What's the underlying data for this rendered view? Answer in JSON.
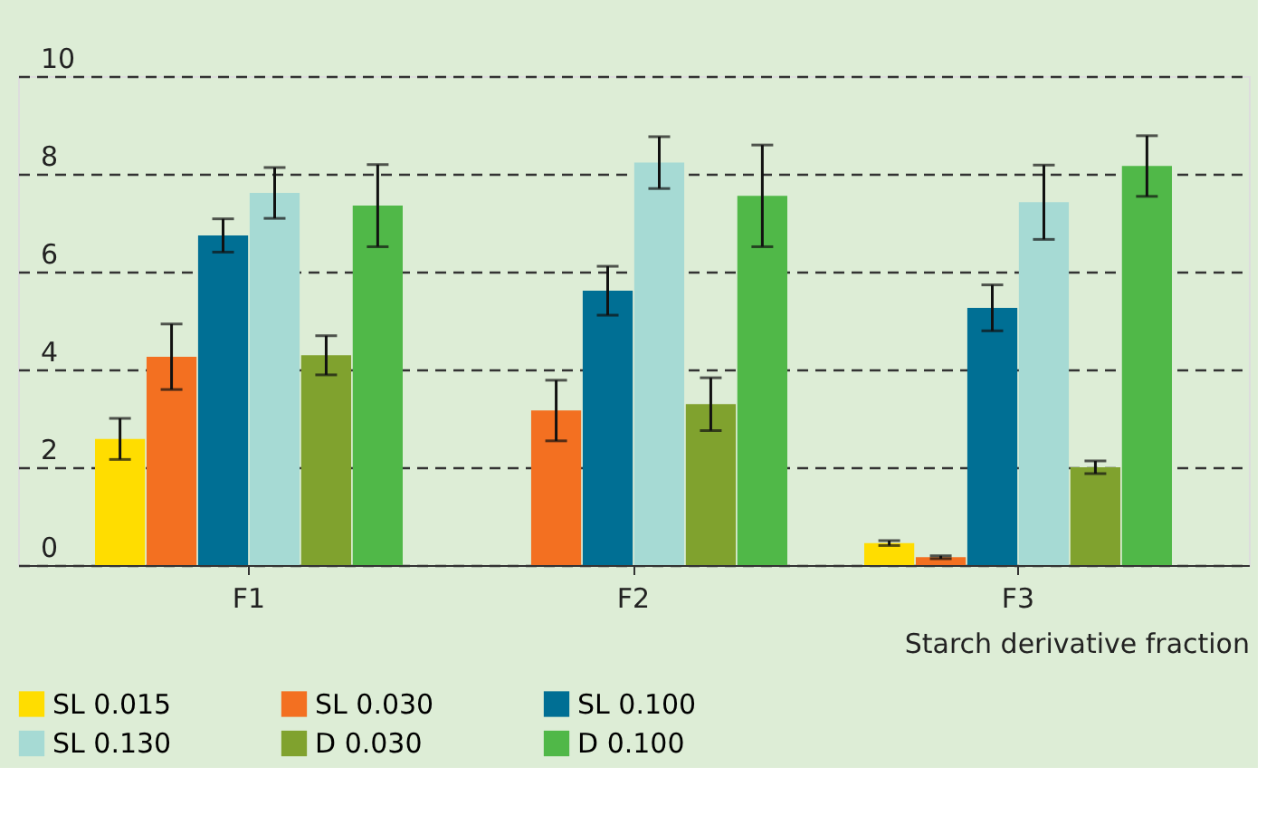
{
  "chart_data": {
    "type": "bar",
    "xlabel": "Starch derivative fraction",
    "categories": [
      "F1",
      "F2",
      "F3"
    ],
    "series": [
      {
        "name": "SL 0.015",
        "color": "#ffdd00",
        "values": [
          2.58,
          null,
          0.45
        ],
        "errors": [
          0.42,
          null,
          0.05
        ]
      },
      {
        "name": "SL 0.030",
        "color": "#f37021",
        "values": [
          4.26,
          3.16,
          0.16
        ],
        "errors": [
          0.67,
          0.62,
          0.03
        ]
      },
      {
        "name": "SL 0.100",
        "color": "#006f94",
        "values": [
          6.74,
          5.61,
          5.26
        ],
        "errors": [
          0.34,
          0.5,
          0.47
        ]
      },
      {
        "name": "SL 0.130",
        "color": "#a6dad4",
        "values": [
          7.61,
          8.23,
          7.42
        ],
        "errors": [
          0.52,
          0.53,
          0.76
        ]
      },
      {
        "name": "D 0.030",
        "color": "#80a22e",
        "values": [
          4.29,
          3.29,
          2.0
        ],
        "errors": [
          0.4,
          0.54,
          0.13
        ]
      },
      {
        "name": "D 0.100",
        "color": "#50b848",
        "values": [
          7.35,
          7.55,
          8.16
        ],
        "errors": [
          0.84,
          1.04,
          0.62
        ]
      }
    ],
    "ylim": [
      0,
      10
    ],
    "yticks": [
      0,
      2,
      4,
      6,
      8,
      10
    ],
    "grid": "y",
    "legend": "bottom left"
  }
}
